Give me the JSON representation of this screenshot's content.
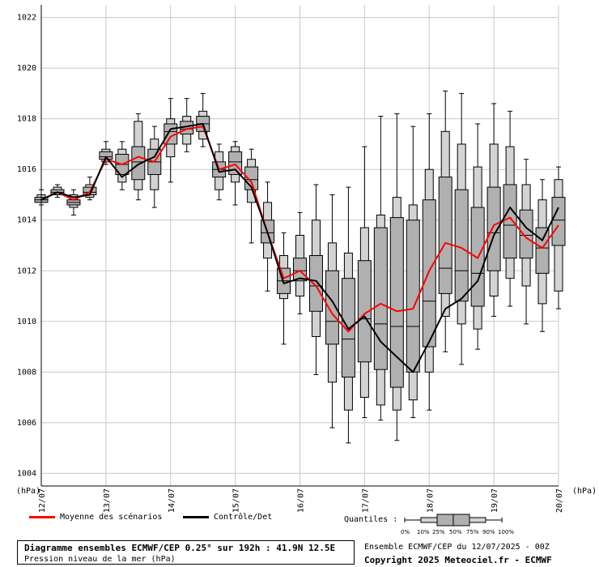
{
  "units": {
    "left": "(hPa)",
    "right": "(hPa)"
  },
  "legend": {
    "mean_label": "Moyenne des scénarios",
    "control_label": "Contrôle/Det",
    "quantiles_label": "Quantiles :",
    "quantile_ticks": [
      "0%",
      "10%",
      "25%",
      "50%",
      "75%",
      "90%",
      "100%"
    ]
  },
  "footer": {
    "title": "Diagramme ensembles ECMWF/CEP 0.25° sur 192h : 41.9N 12.5E",
    "subtitle": "Pression niveau de la mer (hPa)",
    "run_info": "Ensemble ECMWF/CEP du 12/07/2025 - 00Z",
    "copyright": "Copyright 2025 Meteociel.fr - ECMWF"
  },
  "colors": {
    "mean": "#ff0000",
    "control": "#000000",
    "box_outer": "#d3d3d3",
    "box_inner": "#b0b0b0",
    "grid": "#c8c8c8"
  },
  "chart_data": {
    "type": "box",
    "ylim": [
      1003.5,
      1022.5
    ],
    "yticks": [
      "1004",
      "1006",
      "1008",
      "1010",
      "1012",
      "1014",
      "1016",
      "1018",
      "1020",
      "1022"
    ],
    "xticks": [
      "12/07",
      "13/07",
      "14/07",
      "15/07",
      "16/07",
      "17/07",
      "18/07",
      "19/07",
      "20/07"
    ],
    "step_hours": 6,
    "boxes": [
      {
        "h": 0,
        "min": 1014.6,
        "p10": 1014.7,
        "p25": 1014.7,
        "p50": 1014.8,
        "p75": 1014.9,
        "p90": 1015.0,
        "max": 1015.2
      },
      {
        "h": 6,
        "min": 1014.9,
        "p10": 1015.0,
        "p25": 1015.0,
        "p50": 1015.1,
        "p75": 1015.2,
        "p90": 1015.3,
        "max": 1015.4
      },
      {
        "h": 12,
        "min": 1014.2,
        "p10": 1014.5,
        "p25": 1014.6,
        "p50": 1014.7,
        "p75": 1014.8,
        "p90": 1015.0,
        "max": 1015.2
      },
      {
        "h": 18,
        "min": 1014.8,
        "p10": 1014.9,
        "p25": 1015.0,
        "p50": 1015.1,
        "p75": 1015.3,
        "p90": 1015.4,
        "max": 1015.7
      },
      {
        "h": 24,
        "min": 1016.2,
        "p10": 1016.3,
        "p25": 1016.4,
        "p50": 1016.5,
        "p75": 1016.7,
        "p90": 1016.8,
        "max": 1017.1
      },
      {
        "h": 30,
        "min": 1015.2,
        "p10": 1015.5,
        "p25": 1015.8,
        "p50": 1016.2,
        "p75": 1016.6,
        "p90": 1016.8,
        "max": 1017.1
      },
      {
        "h": 36,
        "min": 1014.8,
        "p10": 1015.2,
        "p25": 1015.6,
        "p50": 1016.3,
        "p75": 1016.9,
        "p90": 1017.9,
        "max": 1018.2
      },
      {
        "h": 42,
        "min": 1014.5,
        "p10": 1015.2,
        "p25": 1015.8,
        "p50": 1016.3,
        "p75": 1016.8,
        "p90": 1017.2,
        "max": 1017.7
      },
      {
        "h": 48,
        "min": 1015.5,
        "p10": 1016.5,
        "p25": 1017.0,
        "p50": 1017.5,
        "p75": 1017.8,
        "p90": 1018.0,
        "max": 1018.8
      },
      {
        "h": 54,
        "min": 1016.7,
        "p10": 1017.0,
        "p25": 1017.4,
        "p50": 1017.6,
        "p75": 1017.9,
        "p90": 1018.1,
        "max": 1018.8
      },
      {
        "h": 60,
        "min": 1016.9,
        "p10": 1017.2,
        "p25": 1017.5,
        "p50": 1017.8,
        "p75": 1018.1,
        "p90": 1018.3,
        "max": 1019.0
      },
      {
        "h": 66,
        "min": 1014.8,
        "p10": 1015.2,
        "p25": 1015.7,
        "p50": 1016.0,
        "p75": 1016.3,
        "p90": 1016.7,
        "max": 1017.0
      },
      {
        "h": 72,
        "min": 1014.6,
        "p10": 1015.5,
        "p25": 1015.8,
        "p50": 1016.3,
        "p75": 1016.7,
        "p90": 1016.9,
        "max": 1017.1
      },
      {
        "h": 78,
        "min": 1013.1,
        "p10": 1014.7,
        "p25": 1015.2,
        "p50": 1015.6,
        "p75": 1016.1,
        "p90": 1016.4,
        "max": 1016.8
      },
      {
        "h": 84,
        "min": 1011.2,
        "p10": 1012.5,
        "p25": 1013.1,
        "p50": 1013.5,
        "p75": 1014.0,
        "p90": 1014.7,
        "max": 1015.5
      },
      {
        "h": 90,
        "min": 1009.1,
        "p10": 1010.9,
        "p25": 1011.1,
        "p50": 1011.6,
        "p75": 1012.1,
        "p90": 1012.6,
        "max": 1013.5
      },
      {
        "h": 96,
        "min": 1010.3,
        "p10": 1011.0,
        "p25": 1011.6,
        "p50": 1012.0,
        "p75": 1012.5,
        "p90": 1013.4,
        "max": 1014.3
      },
      {
        "h": 102,
        "min": 1007.9,
        "p10": 1009.4,
        "p25": 1010.4,
        "p50": 1011.4,
        "p75": 1012.6,
        "p90": 1014.0,
        "max": 1015.4
      },
      {
        "h": 108,
        "min": 1005.8,
        "p10": 1007.6,
        "p25": 1009.1,
        "p50": 1010.0,
        "p75": 1012.0,
        "p90": 1013.1,
        "max": 1015.0
      },
      {
        "h": 114,
        "min": 1005.2,
        "p10": 1006.5,
        "p25": 1007.8,
        "p50": 1009.3,
        "p75": 1011.7,
        "p90": 1012.7,
        "max": 1015.3
      },
      {
        "h": 120,
        "min": 1006.2,
        "p10": 1007.0,
        "p25": 1008.4,
        "p50": 1010.1,
        "p75": 1012.4,
        "p90": 1013.7,
        "max": 1016.9
      },
      {
        "h": 126,
        "min": 1006.1,
        "p10": 1006.7,
        "p25": 1008.1,
        "p50": 1009.9,
        "p75": 1013.7,
        "p90": 1014.2,
        "max": 1018.1
      },
      {
        "h": 132,
        "min": 1005.3,
        "p10": 1006.5,
        "p25": 1007.4,
        "p50": 1009.8,
        "p75": 1014.1,
        "p90": 1014.9,
        "max": 1018.2
      },
      {
        "h": 138,
        "min": 1006.2,
        "p10": 1006.9,
        "p25": 1008.0,
        "p50": 1009.8,
        "p75": 1014.0,
        "p90": 1014.6,
        "max": 1017.7
      },
      {
        "h": 144,
        "min": 1006.5,
        "p10": 1008.0,
        "p25": 1009.0,
        "p50": 1010.8,
        "p75": 1014.8,
        "p90": 1016.0,
        "max": 1018.2
      },
      {
        "h": 150,
        "min": 1008.8,
        "p10": 1010.2,
        "p25": 1011.1,
        "p50": 1012.1,
        "p75": 1015.7,
        "p90": 1017.5,
        "max": 1019.1
      },
      {
        "h": 156,
        "min": 1008.3,
        "p10": 1009.9,
        "p25": 1010.8,
        "p50": 1012.0,
        "p75": 1015.2,
        "p90": 1017.0,
        "max": 1019.0
      },
      {
        "h": 162,
        "min": 1008.9,
        "p10": 1009.7,
        "p25": 1010.6,
        "p50": 1011.9,
        "p75": 1014.5,
        "p90": 1016.1,
        "max": 1017.8
      },
      {
        "h": 168,
        "min": 1010.2,
        "p10": 1011.0,
        "p25": 1012.0,
        "p50": 1013.5,
        "p75": 1015.3,
        "p90": 1017.0,
        "max": 1018.6
      },
      {
        "h": 174,
        "min": 1010.6,
        "p10": 1011.7,
        "p25": 1012.5,
        "p50": 1013.8,
        "p75": 1015.4,
        "p90": 1016.9,
        "max": 1018.3
      },
      {
        "h": 180,
        "min": 1009.9,
        "p10": 1011.4,
        "p25": 1012.5,
        "p50": 1013.4,
        "p75": 1014.4,
        "p90": 1015.4,
        "max": 1016.4
      },
      {
        "h": 186,
        "min": 1009.6,
        "p10": 1010.7,
        "p25": 1011.9,
        "p50": 1012.9,
        "p75": 1013.7,
        "p90": 1014.8,
        "max": 1015.6
      },
      {
        "h": 192,
        "min": 1010.5,
        "p10": 1011.2,
        "p25": 1013.0,
        "p50": 1014.0,
        "p75": 1014.9,
        "p90": 1015.6,
        "max": 1016.1
      }
    ],
    "series": [
      {
        "name": "Moyenne des scénarios",
        "color": "#ff0000",
        "values": [
          1014.8,
          1015.1,
          1014.8,
          1015.1,
          1016.4,
          1016.2,
          1016.5,
          1016.3,
          1017.3,
          1017.6,
          1017.7,
          1016.0,
          1016.2,
          1015.5,
          1013.5,
          1011.7,
          1012.0,
          1011.4,
          1010.3,
          1009.6,
          1010.3,
          1010.7,
          1010.4,
          1010.5,
          1012.0,
          1013.1,
          1012.9,
          1012.5,
          1013.8,
          1014.1,
          1013.3,
          1012.9,
          1013.8
        ]
      },
      {
        "name": "Contrôle/Det",
        "color": "#000000",
        "values": [
          1014.8,
          1015.1,
          1014.9,
          1015.0,
          1016.5,
          1015.7,
          1016.2,
          1016.5,
          1017.6,
          1017.7,
          1017.8,
          1015.9,
          1016.0,
          1015.3,
          1013.5,
          1011.5,
          1011.7,
          1011.6,
          1010.8,
          1009.7,
          1010.2,
          1009.2,
          1008.6,
          1008.0,
          1009.2,
          1010.5,
          1010.9,
          1011.6,
          1013.4,
          1014.5,
          1013.7,
          1013.2,
          1014.5
        ]
      }
    ]
  }
}
